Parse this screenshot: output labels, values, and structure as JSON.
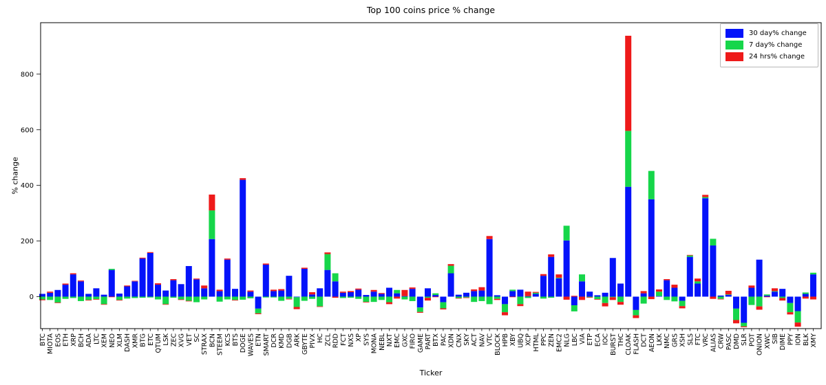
{
  "figure": {
    "title": "Top 100 coins price % change",
    "xlabel": "Ticker",
    "ylabel": "% change"
  },
  "legend": {
    "entries": [
      {
        "label": "30 day% change",
        "color": "#0413fa"
      },
      {
        "label": "7 day% change",
        "color": "#16d64a"
      },
      {
        "label": "24 hrs% change",
        "color": "#ee1a1a"
      }
    ]
  },
  "chart_data": {
    "type": "bar",
    "stacked": true,
    "title": "Top 100 coins price % change",
    "xlabel": "Ticker",
    "ylabel": "% change",
    "grid": false,
    "legend_position": "upper right",
    "ylim": [
      -115,
      985
    ],
    "yticks": [
      0,
      200,
      400,
      600,
      800
    ],
    "categories": [
      "BTC",
      "MIOTA",
      "EOS",
      "ETH",
      "XRP",
      "BCH",
      "ADA",
      "LTC",
      "XEM",
      "NEO",
      "XLM",
      "DASH",
      "XMR",
      "BTG",
      "ETC",
      "QTUM",
      "LSK",
      "ZEC",
      "XVG",
      "VET",
      "SC",
      "STRAX",
      "BCN",
      "STEEM",
      "KCS",
      "BTS",
      "DOGE",
      "WAVES",
      "ETN",
      "SMART",
      "DCR",
      "KMD",
      "DGB",
      "ARK",
      "GBYTE",
      "PIVX",
      "HC",
      "ZCL",
      "RDD",
      "FCT",
      "NXS",
      "XP",
      "SYS",
      "MONA",
      "NEBL",
      "NXT",
      "EMC",
      "GXC",
      "FIRO",
      "GAME",
      "PART",
      "BTX",
      "PAC",
      "XDN",
      "CNX",
      "SKY",
      "ACT",
      "NAV",
      "VTC",
      "BLOCK",
      "HPB",
      "XBY",
      "UBQ",
      "XCP",
      "HTML",
      "PPC",
      "ZEN",
      "EMC2",
      "NLG",
      "LBC",
      "VIA",
      "ETP",
      "ECA",
      "IOC",
      "BURST",
      "THC",
      "CLOAK",
      "FLASH",
      "DCT",
      "AEON",
      "LKK",
      "NMC",
      "GRS",
      "XSH",
      "SLS",
      "FTC",
      "VRC",
      "ALIAS",
      "CRW",
      "PASC",
      "DMD",
      "SLR",
      "POT",
      "ONION",
      "XWC",
      "SIB",
      "DIME",
      "PPY",
      "ION",
      "BLK",
      "XMY"
    ],
    "series": [
      {
        "name": "30 day% change",
        "color": "#0413fa",
        "values": [
          10,
          14,
          24,
          43,
          80,
          55,
          10,
          30,
          7,
          96,
          11,
          37,
          55,
          137,
          157,
          43,
          22,
          59,
          45,
          110,
          62,
          30,
          207,
          20,
          133,
          28,
          420,
          18,
          -43,
          115,
          20,
          22,
          75,
          -2,
          100,
          8,
          30,
          96,
          55,
          14,
          16,
          25,
          6,
          18,
          10,
          32,
          12,
          2,
          28,
          -39,
          30,
          6,
          -20,
          84,
          7,
          14,
          20,
          22,
          207,
          5,
          -27,
          20,
          25,
          2,
          10,
          75,
          143,
          66,
          202,
          -31,
          55,
          18,
          5,
          14,
          139,
          47,
          395,
          -48,
          12,
          350,
          2,
          59,
          32,
          -15,
          143,
          47,
          354,
          184,
          4,
          7,
          -43,
          -94,
          32,
          133,
          4,
          18,
          28,
          -23,
          -52,
          10,
          80
        ]
      },
      {
        "name": "7 day% change",
        "color": "#16d64a",
        "values": [
          -10,
          -12,
          -21,
          -8,
          -5,
          -16,
          -12,
          -9,
          -27,
          4,
          -12,
          -7,
          -5,
          -4,
          -3,
          -10,
          -27,
          -4,
          -10,
          -15,
          -20,
          -10,
          103,
          -18,
          -10,
          -12,
          -11,
          -6,
          -17,
          -3,
          -3,
          -15,
          -8,
          -35,
          -15,
          -8,
          -35,
          57,
          29,
          -5,
          -4,
          -8,
          -19,
          -19,
          -12,
          -20,
          12,
          -10,
          -16,
          -16,
          -4,
          6,
          -22,
          27,
          -5,
          -3,
          -19,
          -16,
          -27,
          -8,
          -29,
          5,
          -27,
          -5,
          4,
          -7,
          -4,
          2,
          53,
          -22,
          25,
          -2,
          -9,
          -23,
          -2,
          -19,
          201,
          -19,
          -25,
          102,
          16,
          -12,
          -17,
          -19,
          5,
          8,
          4,
          24,
          -8,
          1,
          -41,
          -13,
          -30,
          -35,
          4,
          2,
          -5,
          -33,
          -41,
          5,
          6
        ]
      },
      {
        "name": "24 hrs% change",
        "color": "#ee1a1a",
        "values": [
          -3,
          4,
          -2,
          4,
          4,
          3,
          -2,
          -2,
          -2,
          -2,
          -2,
          3,
          2,
          3,
          3,
          5,
          -2,
          4,
          -2,
          -2,
          3,
          10,
          57,
          5,
          4,
          -2,
          6,
          4,
          -3,
          4,
          5,
          5,
          -2,
          -8,
          4,
          8,
          -2,
          6,
          -4,
          4,
          4,
          4,
          -2,
          6,
          3,
          -7,
          -7,
          22,
          5,
          -3,
          -10,
          -2,
          -4,
          6,
          -2,
          -2,
          6,
          12,
          11,
          -4,
          -11,
          -2,
          -7,
          16,
          3,
          6,
          9,
          12,
          -11,
          3,
          -12,
          -2,
          -2,
          -12,
          -10,
          -10,
          342,
          -10,
          8,
          -9,
          8,
          4,
          11,
          -8,
          2,
          10,
          8,
          -8,
          -2,
          13,
          -12,
          -3,
          8,
          -12,
          -2,
          10,
          -9,
          -8,
          -15,
          -7,
          -10
        ]
      }
    ]
  }
}
